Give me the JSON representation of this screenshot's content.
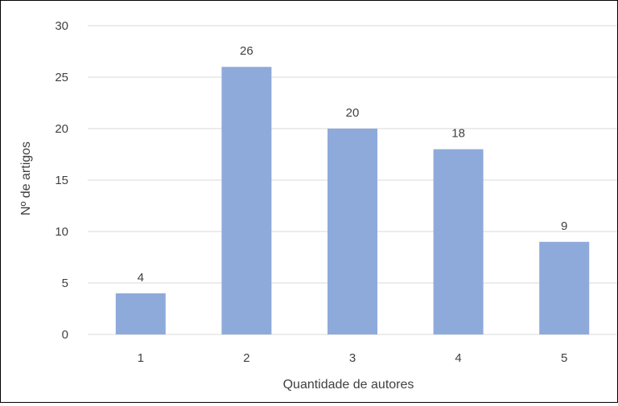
{
  "chart_data": {
    "type": "bar",
    "title": "",
    "xlabel": "Quantidade de autores",
    "ylabel": "Nº de artigos",
    "categories": [
      "1",
      "2",
      "3",
      "4",
      "5"
    ],
    "values": [
      4,
      26,
      20,
      18,
      9
    ],
    "ylim": [
      0,
      30
    ],
    "yticks": [
      0,
      5,
      10,
      15,
      20,
      25,
      30
    ],
    "grid": true,
    "legend": "none",
    "bar_color": "#8eaadb"
  }
}
